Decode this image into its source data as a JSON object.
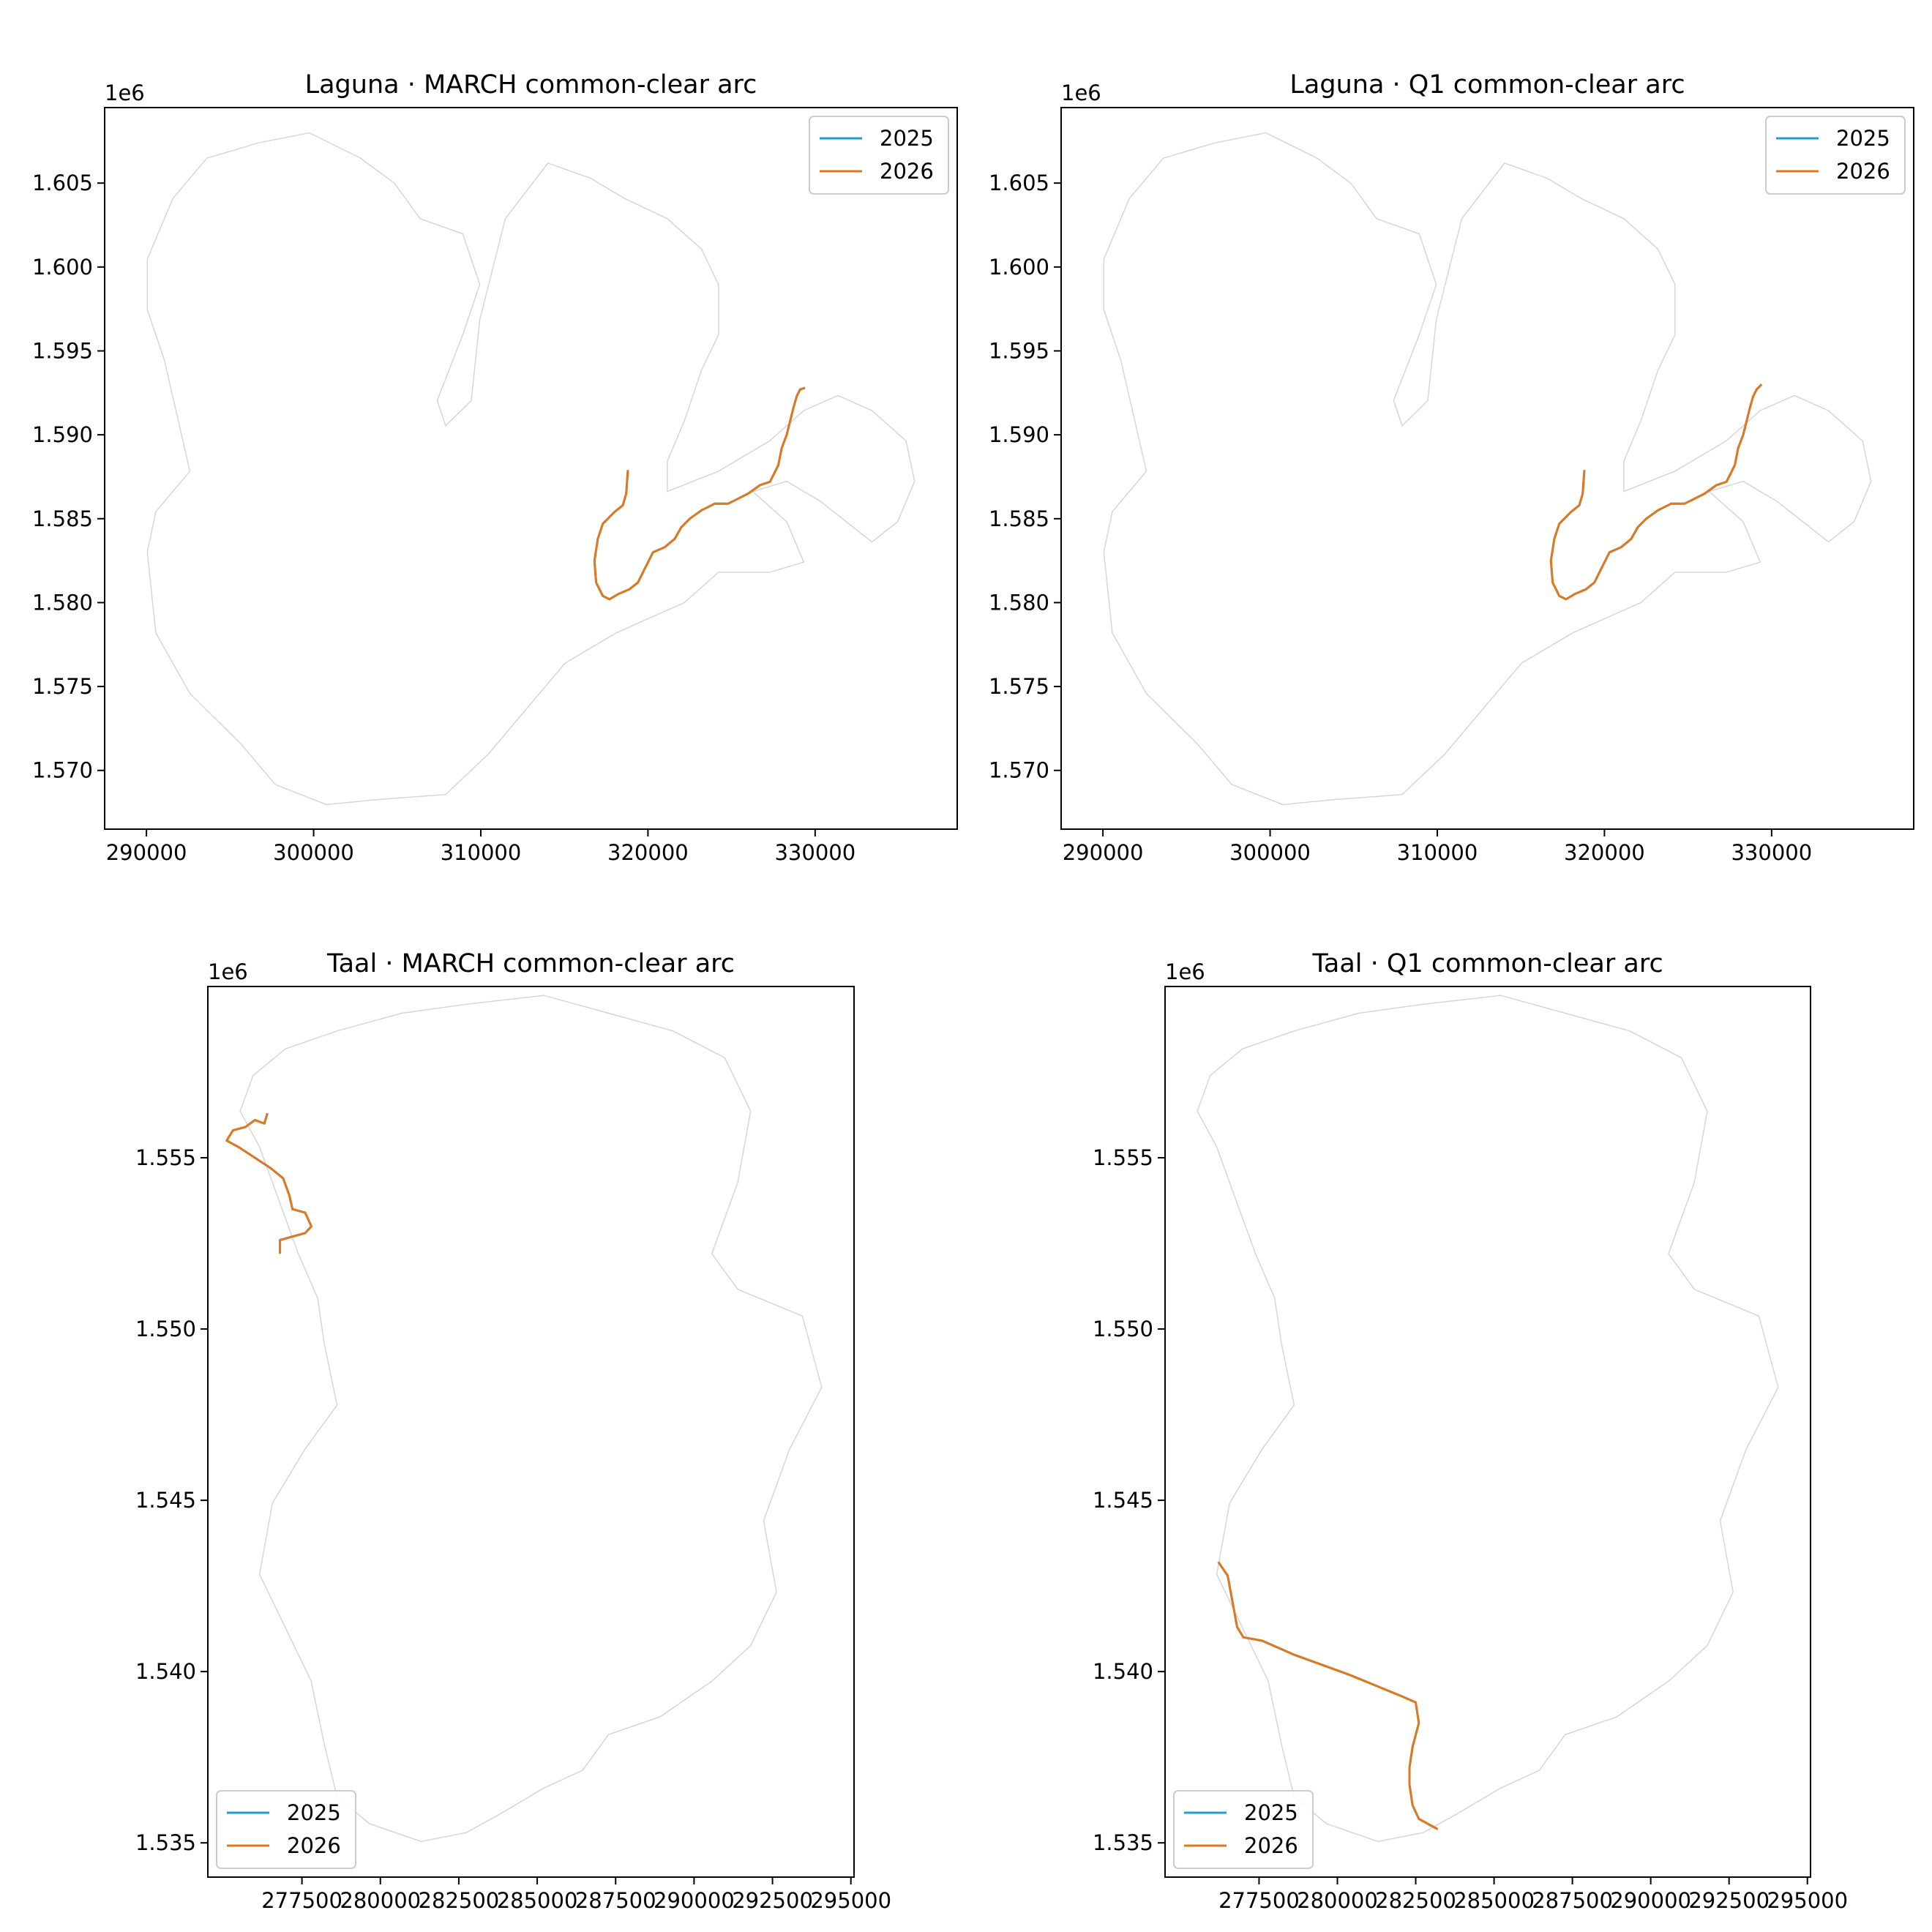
{
  "figure": {
    "colors": {
      "series_2025": "#1f9fd0",
      "series_2026": "#e0781f",
      "outline": "#d6d6d6",
      "axes": "#000000"
    }
  },
  "chart_data": [
    {
      "type": "line",
      "title": "Laguna · MARCH common-clear arc",
      "xlabel": "",
      "ylabel": "",
      "y_offset_label": "1e6",
      "xlim": [
        287500,
        338500
      ],
      "ylim": [
        1566500,
        1609500
      ],
      "xticks": [
        "290000",
        "300000",
        "310000",
        "320000",
        "330000"
      ],
      "xtick_values": [
        290000,
        300000,
        310000,
        320000,
        330000
      ],
      "yticks": [
        "1.570",
        "1.575",
        "1.580",
        "1.585",
        "1.590",
        "1.595",
        "1.600",
        "1.605"
      ],
      "ytick_values": [
        1570000,
        1575000,
        1580000,
        1585000,
        1590000,
        1595000,
        1600000,
        1605000
      ],
      "legend": {
        "placement": "upper right",
        "entries": [
          "2025",
          "2026"
        ]
      },
      "series": [
        {
          "name": "2025",
          "x": [
            318800,
            318700,
            318500,
            318000,
            317300,
            317000,
            316800,
            316900,
            317300,
            317700,
            318200,
            318900,
            319400,
            319800,
            320300,
            321000,
            321600,
            322000,
            322500,
            323200,
            324000,
            324800,
            325400,
            326000,
            326700,
            327300,
            327800,
            328000,
            328300,
            328500,
            328700,
            328900,
            329100,
            329400
          ],
          "y": [
            1587900,
            1586500,
            1585800,
            1585400,
            1584700,
            1583800,
            1582500,
            1581200,
            1580400,
            1580200,
            1580500,
            1580800,
            1581200,
            1582000,
            1583000,
            1583300,
            1583800,
            1584500,
            1585000,
            1585500,
            1585900,
            1585900,
            1586200,
            1586500,
            1587000,
            1587200,
            1588200,
            1589200,
            1590000,
            1590800,
            1591600,
            1592300,
            1592700,
            1592800
          ]
        },
        {
          "name": "2026",
          "x": [
            318800,
            318700,
            318500,
            318000,
            317300,
            317000,
            316800,
            316900,
            317300,
            317700,
            318200,
            318900,
            319400,
            319800,
            320300,
            321000,
            321600,
            322000,
            322500,
            323200,
            324000,
            324800,
            325400,
            326000,
            326700,
            327300,
            327800,
            328000,
            328300,
            328500,
            328700,
            328900,
            329100,
            329400
          ],
          "y": [
            1587900,
            1586500,
            1585800,
            1585400,
            1584700,
            1583800,
            1582500,
            1581200,
            1580400,
            1580200,
            1580500,
            1580800,
            1581200,
            1582000,
            1583000,
            1583300,
            1583800,
            1584500,
            1585000,
            1585500,
            1585900,
            1585900,
            1586200,
            1586500,
            1587000,
            1587200,
            1588200,
            1589200,
            1590000,
            1590800,
            1591600,
            1592300,
            1592700,
            1592800
          ]
        }
      ]
    },
    {
      "type": "line",
      "title": "Laguna · Q1 common-clear arc",
      "xlabel": "",
      "ylabel": "",
      "y_offset_label": "1e6",
      "xlim": [
        287500,
        338500
      ],
      "ylim": [
        1566500,
        1609500
      ],
      "xticks": [
        "290000",
        "300000",
        "310000",
        "320000",
        "330000"
      ],
      "xtick_values": [
        290000,
        300000,
        310000,
        320000,
        330000
      ],
      "yticks": [
        "1.570",
        "1.575",
        "1.580",
        "1.585",
        "1.590",
        "1.595",
        "1.600",
        "1.605"
      ],
      "ytick_values": [
        1570000,
        1575000,
        1580000,
        1585000,
        1590000,
        1595000,
        1600000,
        1605000
      ],
      "legend": {
        "placement": "upper right",
        "entries": [
          "2025",
          "2026"
        ]
      },
      "series": [
        {
          "name": "2025",
          "x": [
            318800,
            318700,
            318500,
            318000,
            317300,
            317000,
            316800,
            316900,
            317300,
            317700,
            318200,
            318900,
            319400,
            319800,
            320300,
            321000,
            321600,
            322000,
            322500,
            323200,
            324000,
            324800,
            325400,
            326000,
            326700,
            327300,
            327800,
            328000,
            328300,
            328500,
            328700,
            328900,
            329100,
            329400
          ],
          "y": [
            1587900,
            1586500,
            1585800,
            1585400,
            1584700,
            1583800,
            1582500,
            1581200,
            1580400,
            1580200,
            1580500,
            1580800,
            1581200,
            1582000,
            1583000,
            1583300,
            1583800,
            1584500,
            1585000,
            1585500,
            1585900,
            1585900,
            1586200,
            1586500,
            1587000,
            1587200,
            1588200,
            1589200,
            1590000,
            1590800,
            1591600,
            1592300,
            1592700,
            1593000
          ]
        },
        {
          "name": "2026",
          "x": [
            318800,
            318700,
            318500,
            318000,
            317300,
            317000,
            316800,
            316900,
            317300,
            317700,
            318200,
            318900,
            319400,
            319800,
            320300,
            321000,
            321600,
            322000,
            322500,
            323200,
            324000,
            324800,
            325400,
            326000,
            326700,
            327300,
            327800,
            328000,
            328300,
            328500,
            328700,
            328900,
            329100,
            329400
          ],
          "y": [
            1587900,
            1586500,
            1585800,
            1585400,
            1584700,
            1583800,
            1582500,
            1581200,
            1580400,
            1580200,
            1580500,
            1580800,
            1581200,
            1582000,
            1583000,
            1583300,
            1583800,
            1584500,
            1585000,
            1585500,
            1585900,
            1585900,
            1586200,
            1586500,
            1587000,
            1587200,
            1588200,
            1589200,
            1590000,
            1590800,
            1591600,
            1592300,
            1592700,
            1593000
          ]
        }
      ]
    },
    {
      "type": "line",
      "title": "Taal · MARCH common-clear arc",
      "xlabel": "",
      "ylabel": "",
      "y_offset_label": "1e6",
      "xlim": [
        274500,
        295100
      ],
      "ylim": [
        1534000,
        1560000
      ],
      "xticks": [
        "277500",
        "280000",
        "282500",
        "285000",
        "287500",
        "290000",
        "292500",
        "295000"
      ],
      "xtick_values": [
        277500,
        280000,
        282500,
        285000,
        287500,
        290000,
        292500,
        295000
      ],
      "yticks": [
        "1.535",
        "1.540",
        "1.545",
        "1.550",
        "1.555"
      ],
      "ytick_values": [
        1535000,
        1540000,
        1545000,
        1550000,
        1555000
      ],
      "legend": {
        "placement": "lower left",
        "entries": [
          "2025",
          "2026"
        ]
      },
      "series": [
        {
          "name": "2025",
          "x": [
            276400,
            276300,
            276000,
            275700,
            275300,
            275100,
            275500,
            276000,
            276500,
            276900,
            277100,
            277200,
            277600,
            277800,
            277600,
            277200,
            276800,
            276800
          ],
          "y": [
            1556300,
            1556000,
            1556100,
            1555900,
            1555800,
            1555500,
            1555300,
            1555000,
            1554700,
            1554400,
            1553900,
            1553500,
            1553400,
            1553000,
            1552800,
            1552700,
            1552600,
            1552200
          ]
        },
        {
          "name": "2026",
          "x": [
            276400,
            276300,
            276000,
            275700,
            275300,
            275100,
            275500,
            276000,
            276500,
            276900,
            277100,
            277200,
            277600,
            277800,
            277600,
            277200,
            276800,
            276800
          ],
          "y": [
            1556300,
            1556000,
            1556100,
            1555900,
            1555800,
            1555500,
            1555300,
            1555000,
            1554700,
            1554400,
            1553900,
            1553500,
            1553400,
            1553000,
            1552800,
            1552700,
            1552600,
            1552200
          ]
        }
      ]
    },
    {
      "type": "line",
      "title": "Taal · Q1 common-clear arc",
      "xlabel": "",
      "ylabel": "",
      "y_offset_label": "1e6",
      "xlim": [
        274500,
        295100
      ],
      "ylim": [
        1534000,
        1560000
      ],
      "xticks": [
        "277500",
        "280000",
        "282500",
        "285000",
        "287500",
        "290000",
        "292500",
        "295000"
      ],
      "xtick_values": [
        277500,
        280000,
        282500,
        285000,
        287500,
        290000,
        292500,
        295000
      ],
      "yticks": [
        "1.535",
        "1.540",
        "1.545",
        "1.550",
        "1.555"
      ],
      "ytick_values": [
        1535000,
        1540000,
        1545000,
        1550000,
        1555000
      ],
      "legend": {
        "placement": "lower left",
        "entries": [
          "2025",
          "2026"
        ]
      },
      "series": [
        {
          "name": "2025",
          "x": [
            276200,
            276500,
            276600,
            276700,
            276800,
            277000,
            277600,
            278600,
            279500,
            280400,
            281200,
            282000,
            282500,
            282600,
            282400,
            282300,
            282300,
            282400,
            282600,
            283200
          ],
          "y": [
            1543200,
            1542800,
            1542300,
            1541800,
            1541300,
            1541000,
            1540900,
            1540500,
            1540200,
            1539900,
            1539600,
            1539300,
            1539100,
            1538500,
            1537800,
            1537200,
            1536700,
            1536100,
            1535700,
            1535400
          ]
        },
        {
          "name": "2026",
          "x": [
            276200,
            276500,
            276600,
            276700,
            276800,
            277000,
            277600,
            278600,
            279500,
            280400,
            281200,
            282000,
            282500,
            282600,
            282400,
            282300,
            282300,
            282400,
            282600,
            283200
          ],
          "y": [
            1543200,
            1542800,
            1542300,
            1541800,
            1541300,
            1541000,
            1540900,
            1540500,
            1540200,
            1539900,
            1539600,
            1539300,
            1539100,
            1538500,
            1537800,
            1537200,
            1536700,
            1536100,
            1535700,
            1535400
          ]
        }
      ]
    }
  ]
}
